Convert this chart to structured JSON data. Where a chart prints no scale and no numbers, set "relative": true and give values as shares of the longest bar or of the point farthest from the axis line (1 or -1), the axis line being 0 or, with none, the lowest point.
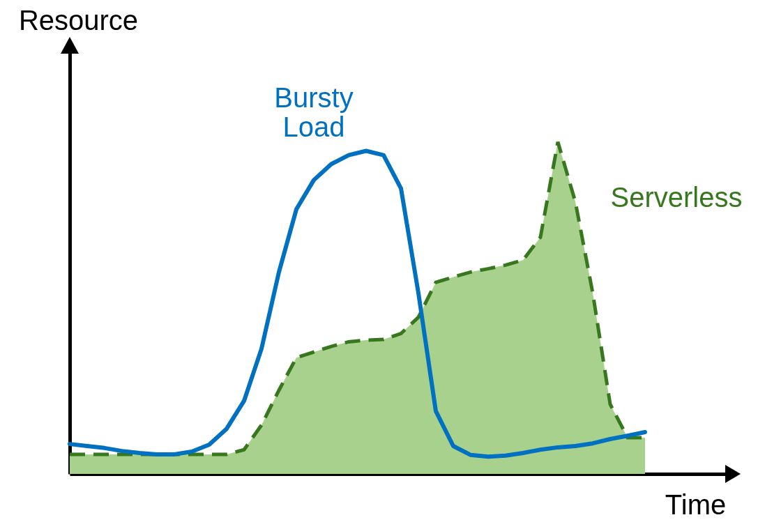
{
  "chart_data": {
    "type": "line",
    "relative": true,
    "xlabel": "Time",
    "ylabel": "Resource",
    "categories": [
      null,
      null,
      null,
      null,
      null,
      null,
      null,
      null,
      null,
      null,
      null,
      null,
      null,
      null,
      null,
      null,
      null,
      null,
      null,
      null,
      null,
      null,
      null,
      null,
      null,
      null,
      null,
      null,
      null,
      null,
      null,
      null,
      null,
      null
    ],
    "series": [
      {
        "name": "Serverless",
        "type": "area",
        "color": "#a9d18e",
        "line_style": "dashed",
        "values": [
          0.059,
          0.059,
          0.059,
          0.059,
          0.059,
          0.059,
          0.059,
          0.059,
          0.059,
          0.059,
          0.073,
          0.147,
          0.252,
          0.35,
          0.367,
          0.384,
          0.398,
          0.403,
          0.405,
          0.423,
          0.472,
          0.577,
          0.593,
          0.608,
          0.618,
          0.629,
          0.644,
          0.713,
          1,
          0.82,
          0.545,
          0.21,
          0.109,
          0.109
        ]
      },
      {
        "name": "Bursty Load",
        "color": "#0070c0",
        "values": [
          0.09,
          0.084,
          0.078,
          0.069,
          0.063,
          0.059,
          0.059,
          0.067,
          0.088,
          0.136,
          0.22,
          0.377,
          0.608,
          0.797,
          0.885,
          0.933,
          0.96,
          0.973,
          0.96,
          0.86,
          0.545,
          0.189,
          0.084,
          0.057,
          0.052,
          0.055,
          0.063,
          0.073,
          0.08,
          0.084,
          0.092,
          0.105,
          0.115,
          0.126
        ]
      }
    ]
  }
}
